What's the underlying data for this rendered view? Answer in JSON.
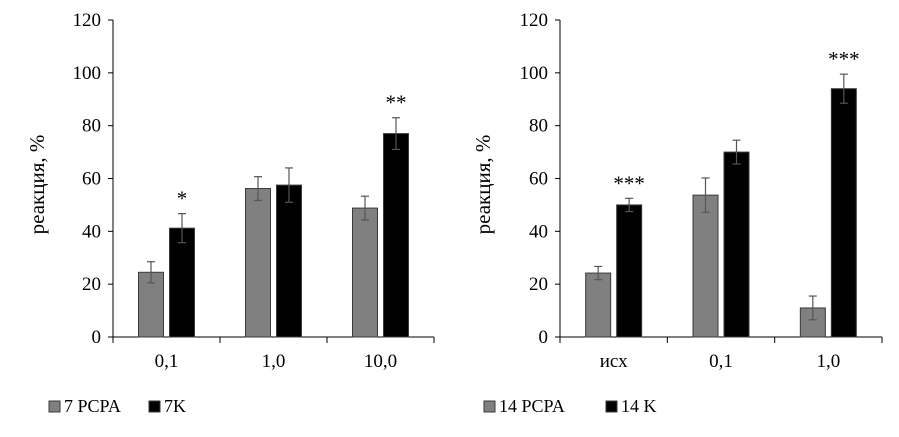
{
  "chart_data": [
    {
      "type": "bar",
      "categories": [
        "0,1",
        "1,0",
        "10,0"
      ],
      "series": [
        {
          "name": "7 PCPA",
          "color": "#808080",
          "values": [
            24.5,
            56.2,
            48.8
          ],
          "errors": [
            4.0,
            4.5,
            4.5
          ]
        },
        {
          "name": "7K",
          "color": "#000000",
          "values": [
            41.2,
            57.5,
            77.0
          ],
          "errors": [
            5.5,
            6.5,
            6.0
          ]
        }
      ],
      "significance": [
        "*",
        "",
        "**"
      ],
      "ylabel": "реакция, %",
      "ylim": [
        0,
        120
      ],
      "yticks": [
        "0",
        "20",
        "40",
        "60",
        "80",
        "100",
        "120"
      ],
      "legend": [
        "7 PCPA",
        "7K"
      ]
    },
    {
      "type": "bar",
      "categories": [
        "исх",
        "0,1",
        "1,0"
      ],
      "series": [
        {
          "name": "14 PCPA",
          "color": "#808080",
          "values": [
            24.2,
            53.7,
            11.0
          ],
          "errors": [
            2.5,
            6.5,
            4.5
          ]
        },
        {
          "name": "14 K",
          "color": "#000000",
          "values": [
            50.0,
            70.0,
            94.0
          ],
          "errors": [
            2.5,
            4.5,
            5.5
          ]
        }
      ],
      "significance": [
        "***",
        "",
        "***"
      ],
      "ylabel": "реакция, %",
      "ylim": [
        0,
        120
      ],
      "yticks": [
        "0",
        "20",
        "40",
        "60",
        "80",
        "100",
        "120"
      ],
      "legend": [
        "14 PCPA",
        "14 K"
      ]
    }
  ]
}
